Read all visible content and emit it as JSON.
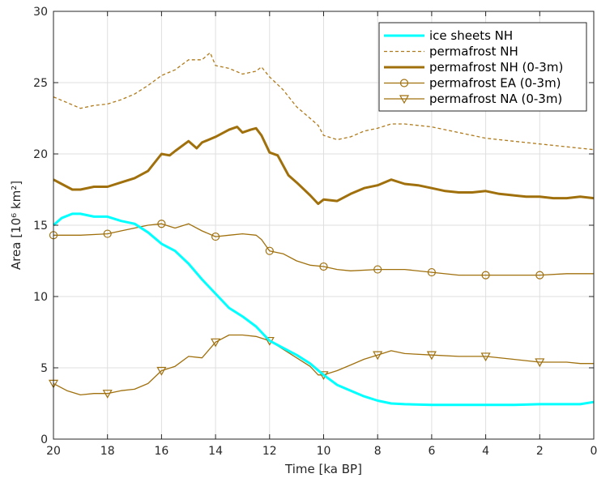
{
  "chart_data": {
    "type": "line",
    "xlabel": "Time  [ka BP]",
    "ylabel": "Area [10⁶ km²]",
    "xlim": [
      20,
      0
    ],
    "ylim": [
      0,
      30
    ],
    "x_reversed": true,
    "xticks": [
      20,
      18,
      16,
      14,
      12,
      10,
      8,
      6,
      4,
      2,
      0
    ],
    "yticks": [
      0,
      5,
      10,
      15,
      20,
      25,
      30
    ],
    "grid": true,
    "legend_position": "top-right",
    "series": [
      {
        "name": "ice sheets NH",
        "color": "#00ffff",
        "style": "solid-thick",
        "marker": "none",
        "points": [
          [
            20,
            15.0
          ],
          [
            19.7,
            15.5
          ],
          [
            19.3,
            15.8
          ],
          [
            19,
            15.8
          ],
          [
            18.5,
            15.6
          ],
          [
            18,
            15.6
          ],
          [
            17.5,
            15.3
          ],
          [
            17,
            15.1
          ],
          [
            16.5,
            14.5
          ],
          [
            16,
            13.7
          ],
          [
            15.5,
            13.2
          ],
          [
            15,
            12.3
          ],
          [
            14.5,
            11.2
          ],
          [
            14,
            10.2
          ],
          [
            13.5,
            9.2
          ],
          [
            13,
            8.6
          ],
          [
            12.5,
            7.9
          ],
          [
            12,
            6.9
          ],
          [
            11.5,
            6.4
          ],
          [
            11,
            5.9
          ],
          [
            10.5,
            5.3
          ],
          [
            10,
            4.5
          ],
          [
            9.5,
            3.8
          ],
          [
            9,
            3.4
          ],
          [
            8.5,
            3.0
          ],
          [
            8,
            2.7
          ],
          [
            7.5,
            2.5
          ],
          [
            7,
            2.45
          ],
          [
            6,
            2.4
          ],
          [
            5,
            2.4
          ],
          [
            4,
            2.4
          ],
          [
            3,
            2.4
          ],
          [
            2,
            2.45
          ],
          [
            1,
            2.45
          ],
          [
            0.5,
            2.45
          ],
          [
            0,
            2.6
          ]
        ]
      },
      {
        "name": "permafrost NH",
        "color": "#b07a1a",
        "style": "dashed",
        "marker": "none",
        "points": [
          [
            20,
            24.0
          ],
          [
            19.5,
            23.6
          ],
          [
            19,
            23.2
          ],
          [
            18.5,
            23.4
          ],
          [
            18,
            23.5
          ],
          [
            17.5,
            23.8
          ],
          [
            17,
            24.2
          ],
          [
            16.5,
            24.8
          ],
          [
            16,
            25.5
          ],
          [
            15.5,
            25.9
          ],
          [
            15,
            26.6
          ],
          [
            14.5,
            26.6
          ],
          [
            14.2,
            27.1
          ],
          [
            14,
            26.2
          ],
          [
            13.5,
            26.0
          ],
          [
            13,
            25.6
          ],
          [
            12.5,
            25.8
          ],
          [
            12.3,
            26.1
          ],
          [
            12,
            25.4
          ],
          [
            11.5,
            24.5
          ],
          [
            11,
            23.3
          ],
          [
            10.5,
            22.5
          ],
          [
            10.2,
            22.0
          ],
          [
            10,
            21.3
          ],
          [
            9.5,
            21.0
          ],
          [
            9,
            21.2
          ],
          [
            8.5,
            21.6
          ],
          [
            8,
            21.8
          ],
          [
            7.5,
            22.1
          ],
          [
            7,
            22.1
          ],
          [
            6,
            21.9
          ],
          [
            5,
            21.5
          ],
          [
            4,
            21.1
          ],
          [
            3,
            20.9
          ],
          [
            2,
            20.7
          ],
          [
            1,
            20.5
          ],
          [
            0,
            20.3
          ]
        ]
      },
      {
        "name": "permafrost NH (0-3m)",
        "color": "#a0700d",
        "style": "solid-thick",
        "marker": "none",
        "points": [
          [
            20,
            18.2
          ],
          [
            19.7,
            17.9
          ],
          [
            19.3,
            17.5
          ],
          [
            19,
            17.5
          ],
          [
            18.5,
            17.7
          ],
          [
            18,
            17.7
          ],
          [
            17.5,
            18.0
          ],
          [
            17,
            18.3
          ],
          [
            16.5,
            18.8
          ],
          [
            16,
            20.0
          ],
          [
            15.7,
            19.9
          ],
          [
            15.5,
            20.2
          ],
          [
            15,
            20.9
          ],
          [
            14.7,
            20.4
          ],
          [
            14.5,
            20.8
          ],
          [
            14,
            21.2
          ],
          [
            13.5,
            21.7
          ],
          [
            13.2,
            21.9
          ],
          [
            13,
            21.5
          ],
          [
            12.7,
            21.7
          ],
          [
            12.5,
            21.8
          ],
          [
            12.3,
            21.3
          ],
          [
            12,
            20.1
          ],
          [
            11.7,
            19.9
          ],
          [
            11.3,
            18.5
          ],
          [
            11,
            18.0
          ],
          [
            10.5,
            17.1
          ],
          [
            10.2,
            16.5
          ],
          [
            10,
            16.8
          ],
          [
            9.5,
            16.7
          ],
          [
            9,
            17.2
          ],
          [
            8.5,
            17.6
          ],
          [
            8,
            17.8
          ],
          [
            7.5,
            18.2
          ],
          [
            7,
            17.9
          ],
          [
            6.5,
            17.8
          ],
          [
            6,
            17.6
          ],
          [
            5.5,
            17.4
          ],
          [
            5,
            17.3
          ],
          [
            4.5,
            17.3
          ],
          [
            4,
            17.4
          ],
          [
            3.5,
            17.2
          ],
          [
            3,
            17.1
          ],
          [
            2.5,
            17.0
          ],
          [
            2,
            17.0
          ],
          [
            1.5,
            16.9
          ],
          [
            1,
            16.9
          ],
          [
            0.5,
            17.0
          ],
          [
            0,
            16.9
          ]
        ]
      },
      {
        "name": "permafrost EA (0-3m)",
        "color": "#a0700d",
        "style": "solid",
        "marker": "circle",
        "marker_x": [
          20,
          18,
          16,
          14,
          12,
          10,
          8,
          6,
          4,
          2
        ],
        "points": [
          [
            20,
            14.3
          ],
          [
            19,
            14.3
          ],
          [
            18,
            14.4
          ],
          [
            17.5,
            14.6
          ],
          [
            17,
            14.8
          ],
          [
            16.5,
            15.0
          ],
          [
            16,
            15.1
          ],
          [
            15.5,
            14.8
          ],
          [
            15,
            15.1
          ],
          [
            14.5,
            14.6
          ],
          [
            14,
            14.2
          ],
          [
            13.5,
            14.3
          ],
          [
            13,
            14.4
          ],
          [
            12.5,
            14.3
          ],
          [
            12.3,
            14.0
          ],
          [
            12,
            13.2
          ],
          [
            11.5,
            13.0
          ],
          [
            11,
            12.5
          ],
          [
            10.5,
            12.2
          ],
          [
            10,
            12.1
          ],
          [
            9.5,
            11.9
          ],
          [
            9,
            11.8
          ],
          [
            8,
            11.9
          ],
          [
            7,
            11.9
          ],
          [
            6,
            11.7
          ],
          [
            5,
            11.5
          ],
          [
            4,
            11.5
          ],
          [
            3,
            11.5
          ],
          [
            2,
            11.5
          ],
          [
            1,
            11.6
          ],
          [
            0,
            11.6
          ]
        ]
      },
      {
        "name": "permafrost NA (0-3m)",
        "color": "#a0700d",
        "style": "solid",
        "marker": "triangle-down",
        "marker_x": [
          20,
          18,
          16,
          14,
          12,
          10,
          8,
          6,
          4,
          2
        ],
        "points": [
          [
            20,
            3.9
          ],
          [
            19.5,
            3.4
          ],
          [
            19,
            3.1
          ],
          [
            18.5,
            3.2
          ],
          [
            18,
            3.2
          ],
          [
            17.5,
            3.4
          ],
          [
            17,
            3.5
          ],
          [
            16.5,
            3.9
          ],
          [
            16,
            4.8
          ],
          [
            15.5,
            5.1
          ],
          [
            15,
            5.8
          ],
          [
            14.5,
            5.7
          ],
          [
            14,
            6.8
          ],
          [
            13.5,
            7.3
          ],
          [
            13,
            7.3
          ],
          [
            12.5,
            7.2
          ],
          [
            12,
            6.9
          ],
          [
            11.5,
            6.3
          ],
          [
            11,
            5.7
          ],
          [
            10.5,
            5.1
          ],
          [
            10.2,
            4.5
          ],
          [
            10,
            4.5
          ],
          [
            9.5,
            4.8
          ],
          [
            9,
            5.2
          ],
          [
            8.5,
            5.6
          ],
          [
            8,
            5.9
          ],
          [
            7.5,
            6.2
          ],
          [
            7,
            6.0
          ],
          [
            6,
            5.9
          ],
          [
            5,
            5.8
          ],
          [
            4,
            5.8
          ],
          [
            3,
            5.6
          ],
          [
            2,
            5.4
          ],
          [
            1,
            5.4
          ],
          [
            0.5,
            5.3
          ],
          [
            0,
            5.3
          ]
        ]
      }
    ]
  }
}
